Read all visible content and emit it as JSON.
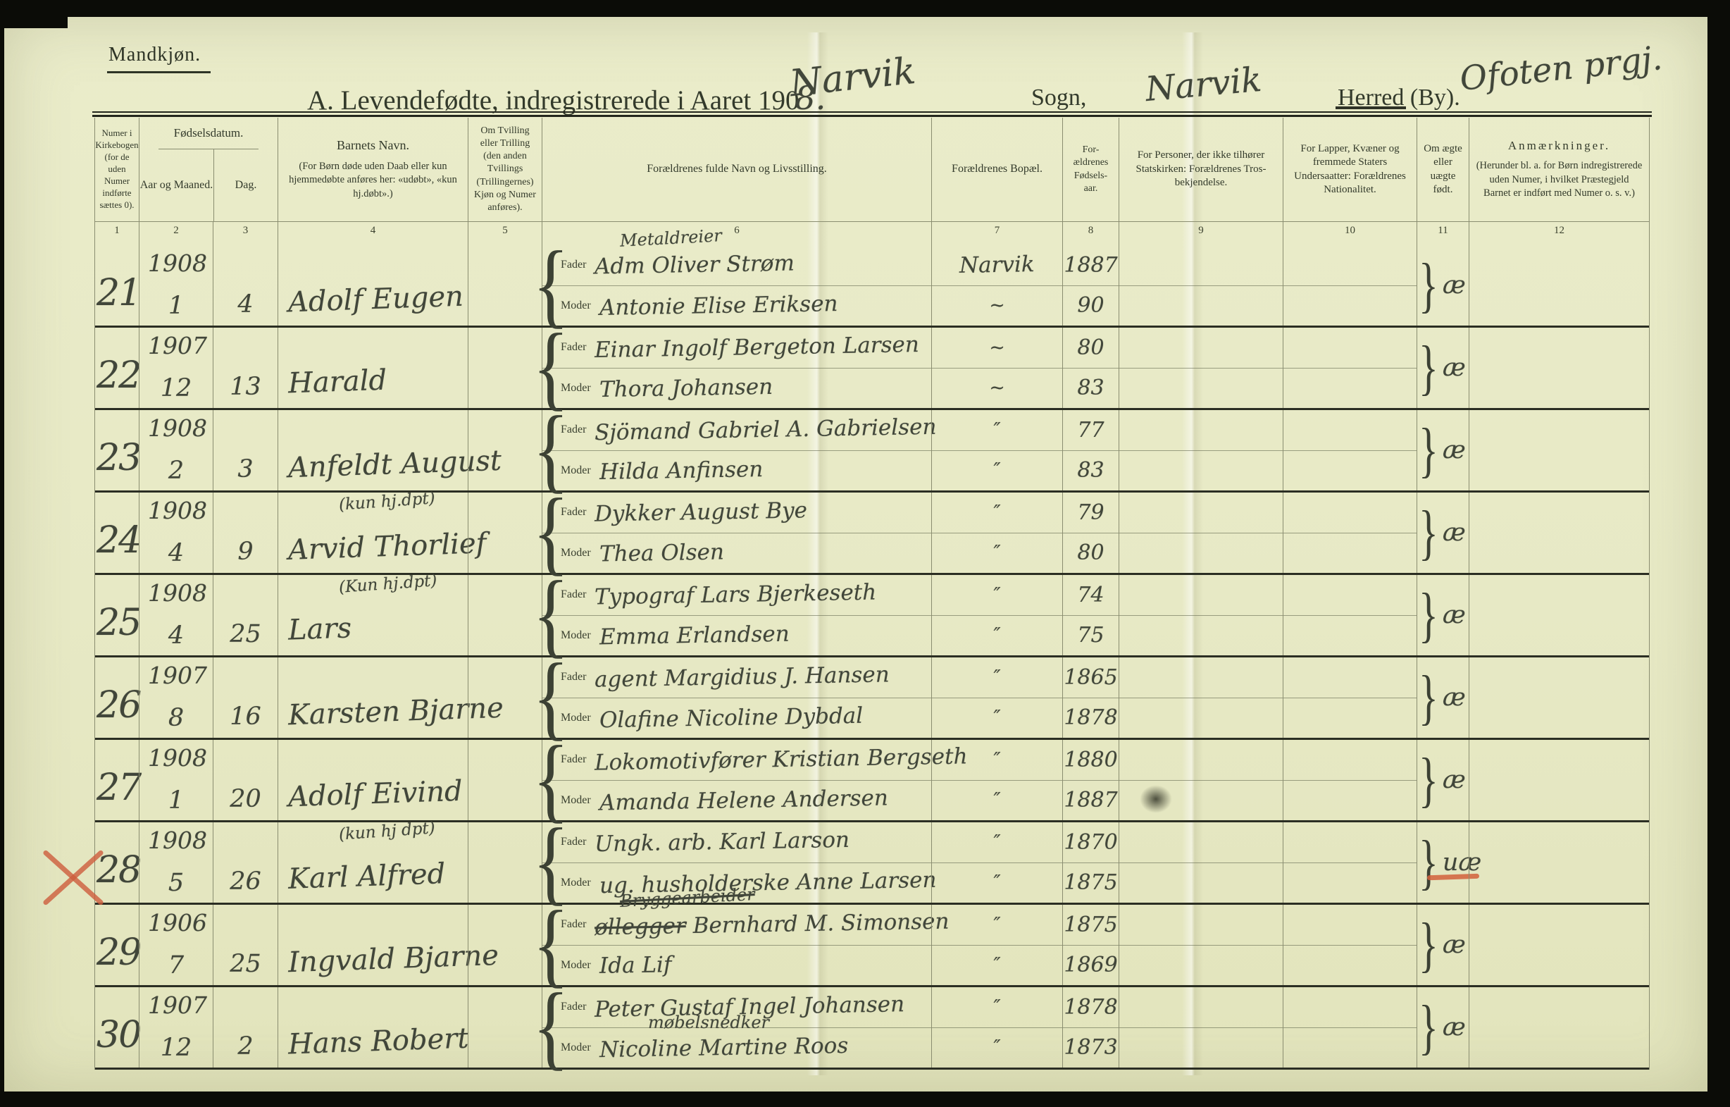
{
  "page": {
    "sex_label": "Mandkjøn.",
    "title_prefix": "A.  Levendefødte, indregistrerede i Aaret 190",
    "title_year_hw": "8.",
    "title_place_hw": "Narvik",
    "sogn_label": "Sogn,",
    "herred_label_struck": "Herred",
    "herred_label_rest": "(By).",
    "sogn_value_hw": "Narvik",
    "herred_value_hw": "Ofoten prgj.",
    "accent_red": "#cd5c3c",
    "paper_color": "#e8eac7"
  },
  "table": {
    "fodselsdatum_label": "Fødselsdatum.",
    "fader_label": "Fader",
    "moder_label": "Moder",
    "columns": [
      {
        "num": "1",
        "header": "Numer i Kirkebogen (for de uden Numer indførte sættes 0)."
      },
      {
        "num": "2",
        "header": "Aar og Maaned."
      },
      {
        "num": "3",
        "header": "Dag."
      },
      {
        "num": "4",
        "header": "Barnets Navn.",
        "sub": "(For Børn døde uden Daab eller kun hjemmedøbte anføres her: «udøbt», «kun hj.døbt».)"
      },
      {
        "num": "5",
        "header": "Om Tvilling eller Trilling (den anden Tvillings (Trillingernes) Kjøn og Numer anføres)."
      },
      {
        "num": "6",
        "header": "Forældrenes fulde Navn og Livsstilling."
      },
      {
        "num": "7",
        "header": "Forældrenes Bopæl."
      },
      {
        "num": "8",
        "header": "For- ældrenes Fødsels- aar."
      },
      {
        "num": "9",
        "header": "For Personer, der ikke tilhører Statskirken: Forældrenes Tros- bekjendelse."
      },
      {
        "num": "10",
        "header": "For Lapper, Kvæner og fremmede Staters Undersaatter: Forældrenes Nationalitet."
      },
      {
        "num": "11",
        "header": "Om ægte eller uægte født."
      },
      {
        "num": "12",
        "header": "Anmærkninger.",
        "sub": "(Herunder bl. a. for Børn indregistrerede uden Numer, i hvilket Præstegjeld Barnet er indført med Numer o. s. v.)"
      }
    ],
    "rows": [
      {
        "number": "21",
        "year": "1908",
        "month": "1",
        "day": "4",
        "name": "Adolf Eugen",
        "father_note_above": "Metaldreier",
        "father": "Adm Oliver Strøm",
        "mother": "Antonie Elise Eriksen",
        "residence_father": "Narvik",
        "residence_mother": "~",
        "father_birthyear": "1887",
        "mother_birthyear": "90",
        "legitimacy": "æ"
      },
      {
        "number": "22",
        "year": "1907",
        "month": "12",
        "day": "13",
        "name": "Harald",
        "father": "Einar Ingolf Bergeton Larsen",
        "mother": "Thora Johansen",
        "residence_father": "~",
        "residence_mother": "~",
        "father_birthyear": "80",
        "mother_birthyear": "83",
        "legitimacy": "æ"
      },
      {
        "number": "23",
        "year": "1908",
        "month": "2",
        "day": "3",
        "name": "Anfeldt August",
        "father": "Sjömand Gabriel A. Gabrielsen",
        "mother": "Hilda Anfinsen",
        "residence_father": "″",
        "residence_mother": "″",
        "father_birthyear": "77",
        "mother_birthyear": "83",
        "legitimacy": "æ"
      },
      {
        "number": "24",
        "year": "1908",
        "month": "4",
        "day": "9",
        "name": "Arvid Thorlief",
        "name_note": "(kun hj.dpt)",
        "father": "Dykker August Bye",
        "mother": "Thea Olsen",
        "residence_father": "″",
        "residence_mother": "″",
        "father_birthyear": "79",
        "mother_birthyear": "80",
        "legitimacy": "æ"
      },
      {
        "number": "25",
        "year": "1908",
        "month": "4",
        "day": "25",
        "name": "Lars",
        "name_note": "(Kun hj.dpt)",
        "father": "Typograf Lars Bjerkeseth",
        "mother": "Emma Erlandsen",
        "residence_father": "″",
        "residence_mother": "″",
        "father_birthyear": "74",
        "mother_birthyear": "75",
        "legitimacy": "æ"
      },
      {
        "number": "26",
        "year": "1907",
        "month": "8",
        "day": "16",
        "name": "Karsten Bjarne",
        "father": "agent Margidius J. Hansen",
        "mother": "Olafine Nicoline Dybdal",
        "residence_father": "″",
        "residence_mother": "″",
        "father_birthyear": "1865",
        "mother_birthyear": "1878",
        "legitimacy": "æ"
      },
      {
        "number": "27",
        "year": "1908",
        "month": "1",
        "day": "20",
        "name": "Adolf Eivind",
        "father": "Lokomotivfører Kristian Bergseth",
        "mother": "Amanda Helene Andersen",
        "residence_father": "″",
        "residence_mother": "″",
        "father_birthyear": "1880",
        "mother_birthyear": "1887",
        "legitimacy": "æ"
      },
      {
        "number": "28",
        "year": "1908",
        "month": "5",
        "day": "26",
        "name": "Karl Alfred",
        "name_note": "(kun hj dpt)",
        "father": "Ungk. arb. Karl Larson",
        "mother": "ug. husholderske Anne Larsen",
        "residence_father": "″",
        "residence_mother": "″",
        "father_birthyear": "1870",
        "mother_birthyear": "1875",
        "legitimacy": "uæ",
        "red_underline": true,
        "red_x": true
      },
      {
        "number": "29",
        "year": "1906",
        "month": "7",
        "day": "25",
        "name": "Ingvald Bjarne",
        "father_note_above": "Bryggearbeider",
        "father_note_above_struck": true,
        "father_struck": "øllegger",
        "father": "Bernhard M. Simonsen",
        "mother": "Ida Lif",
        "residence_father": "″",
        "residence_mother": "″",
        "father_birthyear": "1875",
        "mother_birthyear": "1869",
        "legitimacy": "æ"
      },
      {
        "number": "30",
        "year": "1907",
        "month": "12",
        "day": "2",
        "name": "Hans Robert",
        "father": "Peter Gustaf Ingel Johansen",
        "father_note_below": "møbelsnedker",
        "mother": "Nicoline Martine Roos",
        "residence_father": "″",
        "residence_mother": "″",
        "father_birthyear": "1878",
        "mother_birthyear": "1873",
        "legitimacy": "æ"
      }
    ]
  }
}
